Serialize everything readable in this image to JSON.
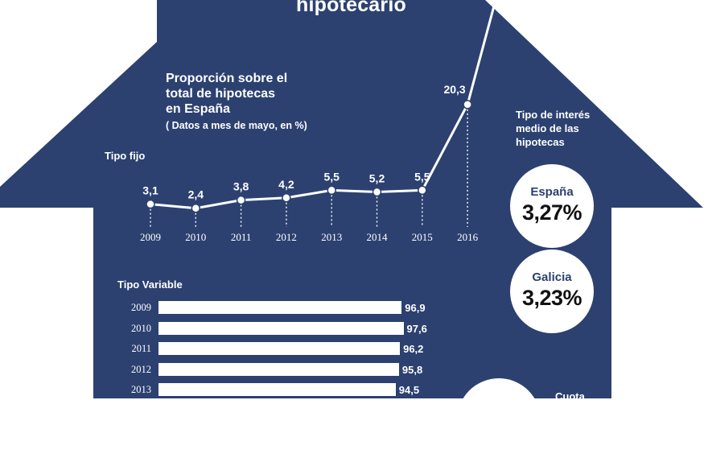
{
  "headline": "hipotecario",
  "fixed_section": {
    "title_lines": [
      "Proporción sobre el",
      "total de hipotecas",
      "en España"
    ],
    "note": "( Datos a mes de mayo, en %)",
    "series_label": "Tipo fijo"
  },
  "variable_section": {
    "series_label": "Tipo Variable"
  },
  "interest_rates": {
    "title_lines": [
      "Tipo de interés",
      "medio de las",
      "hipotecas"
    ],
    "items": [
      {
        "region": "España",
        "rate": "3,27%"
      },
      {
        "region": "Galicia",
        "rate": "3,23%"
      }
    ]
  },
  "cuota_label": "Cuota",
  "colors": {
    "house": "#2c4170",
    "text": "#ffffff",
    "badge_text": "#2c4170"
  },
  "chart_data": [
    {
      "type": "line",
      "title": "Tipo fijo",
      "categories": [
        "2009",
        "2010",
        "2011",
        "2012",
        "2013",
        "2014",
        "2015",
        "2016"
      ],
      "values": [
        3.1,
        2.4,
        3.8,
        4.2,
        5.5,
        5.2,
        5.5,
        20.3
      ],
      "labels": [
        "3,1",
        "2,4",
        "3,8",
        "4,2",
        "5,5",
        "5,2",
        "5,5",
        "20,3"
      ],
      "xlabel": "",
      "ylabel": ""
    },
    {
      "type": "bar",
      "orientation": "horizontal",
      "title": "Tipo Variable",
      "categories": [
        "2009",
        "2010",
        "2011",
        "2012",
        "2013"
      ],
      "values": [
        96.9,
        97.6,
        96.2,
        95.8,
        94.5
      ],
      "labels": [
        "96,9",
        "97,6",
        "96,2",
        "95,8",
        "94,5"
      ],
      "xlim": [
        0,
        100
      ]
    }
  ]
}
